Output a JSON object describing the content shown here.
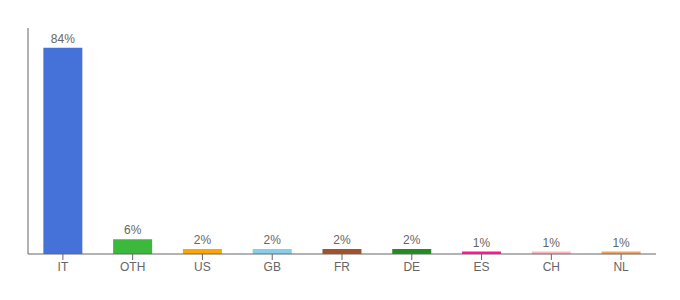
{
  "chart_data": {
    "type": "bar",
    "categories": [
      "IT",
      "OTH",
      "US",
      "GB",
      "FR",
      "DE",
      "ES",
      "CH",
      "NL"
    ],
    "values": [
      84,
      6,
      2,
      2,
      2,
      2,
      1,
      1,
      1
    ],
    "value_labels": [
      "84%",
      "6%",
      "2%",
      "2%",
      "2%",
      "2%",
      "1%",
      "1%",
      "1%"
    ],
    "colors": [
      "#4472D8",
      "#3CB83C",
      "#FFA500",
      "#87CEEB",
      "#A0522D",
      "#228B22",
      "#FF1493",
      "#FFB6C1",
      "#F4A460"
    ],
    "ylim": [
      0,
      92
    ],
    "grid": false,
    "data_labels": true,
    "tick_labels": "x"
  }
}
